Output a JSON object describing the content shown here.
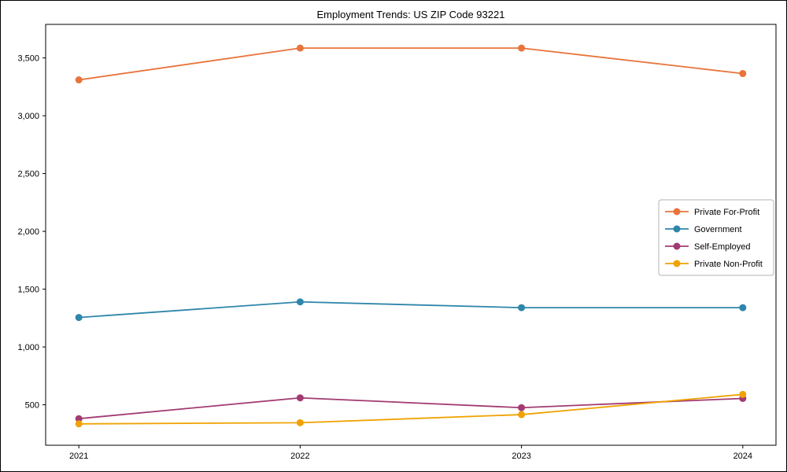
{
  "chart_data": {
    "type": "line",
    "title": "Employment Trends: US ZIP Code 93221",
    "x": [
      2021,
      2022,
      2023,
      2024
    ],
    "xlabel": "",
    "ylabel": "",
    "series": [
      {
        "name": "Private For-Profit",
        "color": "#E8743B",
        "values": [
          3310,
          3585,
          3585,
          3365
        ]
      },
      {
        "name": "Government",
        "color": "#2E86AB",
        "values": [
          1255,
          1390,
          1340,
          1340
        ]
      },
      {
        "name": "Self-Employed",
        "color": "#A23B72",
        "values": [
          380,
          560,
          475,
          555
        ]
      },
      {
        "name": "Private Non-Profit",
        "color": "#F0A202",
        "values": [
          335,
          345,
          415,
          590
        ]
      }
    ],
    "yticks": [
      500,
      1000,
      1500,
      2000,
      2500,
      3000,
      3500
    ],
    "ytick_labels": [
      "500",
      "1,000",
      "1,500",
      "2,000",
      "2,500",
      "3,000",
      "3,500"
    ],
    "xtick_labels": [
      "2021",
      "2022",
      "2023",
      "2024"
    ],
    "ylim": [
      150,
      3790
    ],
    "xlim": [
      2020.85,
      2024.15
    ],
    "grid": false,
    "marker": "circle",
    "legend_position": "center-right",
    "axis_color": "#000000",
    "legend_border_color": "#b3b3b3",
    "background_color": "#ffffff"
  }
}
